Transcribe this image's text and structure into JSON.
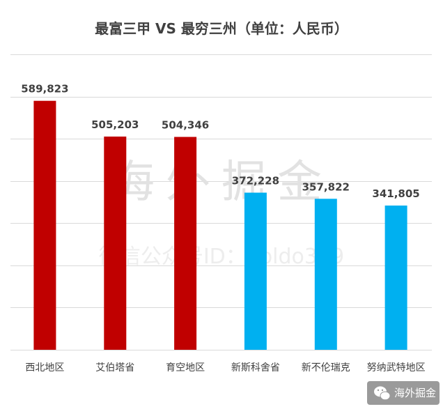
{
  "chart_data": {
    "type": "bar",
    "title": "最富三甲 VS 最穷三州（单位：人民币）",
    "categories": [
      "西北地区",
      "艾伯塔省",
      "育空地区",
      "新斯科舍省",
      "新不伦瑞克",
      "努纳武特地区"
    ],
    "values": [
      589823,
      505203,
      504346,
      372228,
      357822,
      341805
    ],
    "value_labels": [
      "589,823",
      "505,203",
      "504,346",
      "372,228",
      "357,822",
      "341,805"
    ],
    "bar_colors": [
      "#c00000",
      "#c00000",
      "#c00000",
      "#00b0f0",
      "#00b0f0",
      "#00b0f0"
    ],
    "ylim": [
      0,
      700000
    ],
    "ytick_step": 100000,
    "grid": true,
    "legend": "none"
  },
  "watermark": {
    "main": "海外掘金",
    "sub": "微信公众号ID：goldo349"
  },
  "badge": {
    "text": "海外掘金"
  },
  "colors": {
    "grid": "#d9d9d9",
    "text": "#404040",
    "badge_bg": "#9a9a9a"
  }
}
